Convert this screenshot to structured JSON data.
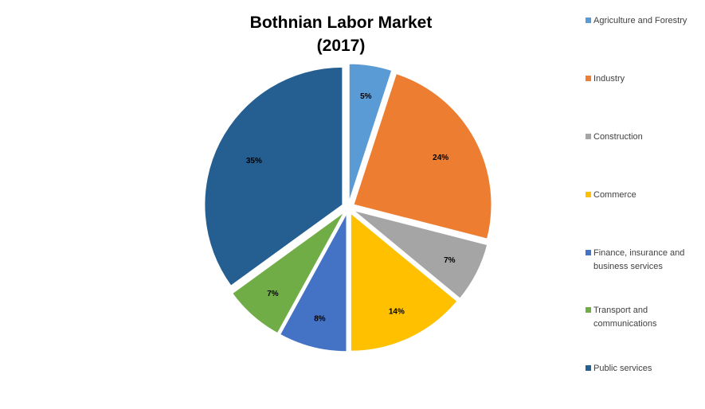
{
  "chart_data": {
    "type": "pie",
    "title_lines": [
      "Bothnian Labor Market",
      "(2017)"
    ],
    "slices": [
      {
        "name": "Agriculture and Forestry",
        "value": 5,
        "label": "5%",
        "color": "#5b9bd5"
      },
      {
        "name": "Industry",
        "value": 24,
        "label": "24%",
        "color": "#ed7d31"
      },
      {
        "name": "Construction",
        "value": 7,
        "label": "7%",
        "color": "#a5a5a5"
      },
      {
        "name": "Commerce",
        "value": 14,
        "label": "14%",
        "color": "#ffc000"
      },
      {
        "name": "Finance, insurance and business services",
        "value": 8,
        "label": "8%",
        "color": "#4472c4"
      },
      {
        "name": "Transport and communications",
        "value": 7,
        "label": "7%",
        "color": "#70ad47"
      },
      {
        "name": "Public services",
        "value": 35,
        "label": "35%",
        "color": "#255e91"
      }
    ],
    "legend_position": "right",
    "exploded": true
  }
}
